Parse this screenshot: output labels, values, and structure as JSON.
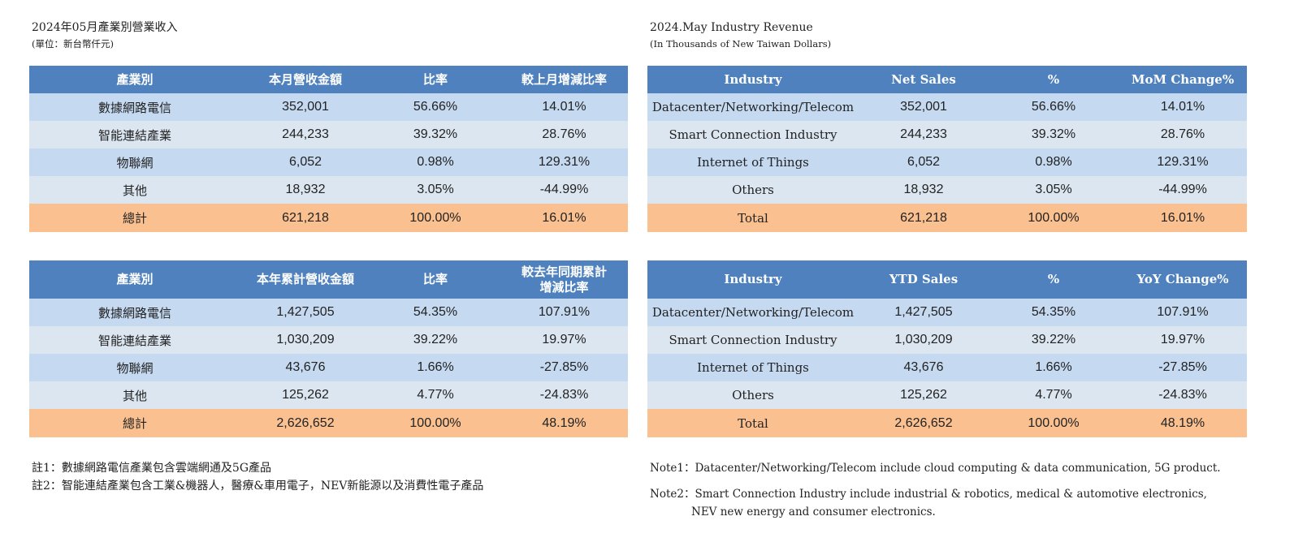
{
  "zh": {
    "title": "2024年05月產業別營業收入",
    "unit": "(單位：新台幣仟元)",
    "monthly": {
      "headers": [
        "產業別",
        "本月營收金額",
        "比率",
        "較上月增減比率"
      ],
      "rows": [
        [
          "數據網路電信",
          "352,001",
          "56.66%",
          "14.01%"
        ],
        [
          "智能連結產業",
          "244,233",
          "39.32%",
          "28.76%"
        ],
        [
          "物聯網",
          "6,052",
          "0.98%",
          "129.31%"
        ],
        [
          "其他",
          "18,932",
          "3.05%",
          "-44.99%"
        ],
        [
          "總計",
          "621,218",
          "100.00%",
          "16.01%"
        ]
      ]
    },
    "ytd": {
      "headers": [
        "產業別",
        "本年累計營收金額",
        "比率",
        "較去年同期累計",
        "增減比率"
      ],
      "rows": [
        [
          "數據網路電信",
          "1,427,505",
          "54.35%",
          "107.91%"
        ],
        [
          "智能連結產業",
          "1,030,209",
          "39.22%",
          "19.97%"
        ],
        [
          "物聯網",
          "43,676",
          "1.66%",
          "-27.85%"
        ],
        [
          "其他",
          "125,262",
          "4.77%",
          "-24.83%"
        ],
        [
          "總計",
          "2,626,652",
          "100.00%",
          "48.19%"
        ]
      ]
    },
    "notes": [
      "註1：數據網路電信產業包含雲端網通及5G產品",
      "註2：智能連結產業包含工業&機器人，醫療&車用電子，NEV新能源以及消費性電子產品"
    ]
  },
  "en": {
    "title": "2024.May Industry Revenue",
    "unit": "(In Thousands of New Taiwan Dollars)",
    "monthly": {
      "headers": [
        "Industry",
        "Net Sales",
        "%",
        "MoM Change%"
      ],
      "rows": [
        [
          "Datacenter/Networking/Telecom",
          "352,001",
          "56.66%",
          "14.01%"
        ],
        [
          "Smart Connection Industry",
          "244,233",
          "39.32%",
          "28.76%"
        ],
        [
          "Internet of Things",
          "6,052",
          "0.98%",
          "129.31%"
        ],
        [
          "Others",
          "18,932",
          "3.05%",
          "-44.99%"
        ],
        [
          "Total",
          "621,218",
          "100.00%",
          "16.01%"
        ]
      ]
    },
    "ytd": {
      "headers": [
        "Industry",
        "YTD Sales",
        "%",
        "YoY Change%"
      ],
      "rows": [
        [
          "Datacenter/Networking/Telecom",
          "1,427,505",
          "54.35%",
          "107.91%"
        ],
        [
          "Smart Connection Industry",
          "1,030,209",
          "39.22%",
          "19.97%"
        ],
        [
          "Internet of Things",
          "43,676",
          "1.66%",
          "-27.85%"
        ],
        [
          "Others",
          "125,262",
          "4.77%",
          "-24.83%"
        ],
        [
          "Total",
          "2,626,652",
          "100.00%",
          "48.19%"
        ]
      ]
    },
    "notes": {
      "note1": "Note1：Datacenter/Networking/Telecom include cloud computing & data communication, 5G product.",
      "note2_line1": "Note2：Smart Connection Industry include industrial & robotics, medical & automotive electronics,",
      "note2_line2": "NEV new energy and consumer electronics."
    }
  },
  "colors": {
    "header": "#4e81bd",
    "row_odd": "#c5d9f1",
    "row_even": "#dce6f1",
    "total": "#fac090"
  }
}
